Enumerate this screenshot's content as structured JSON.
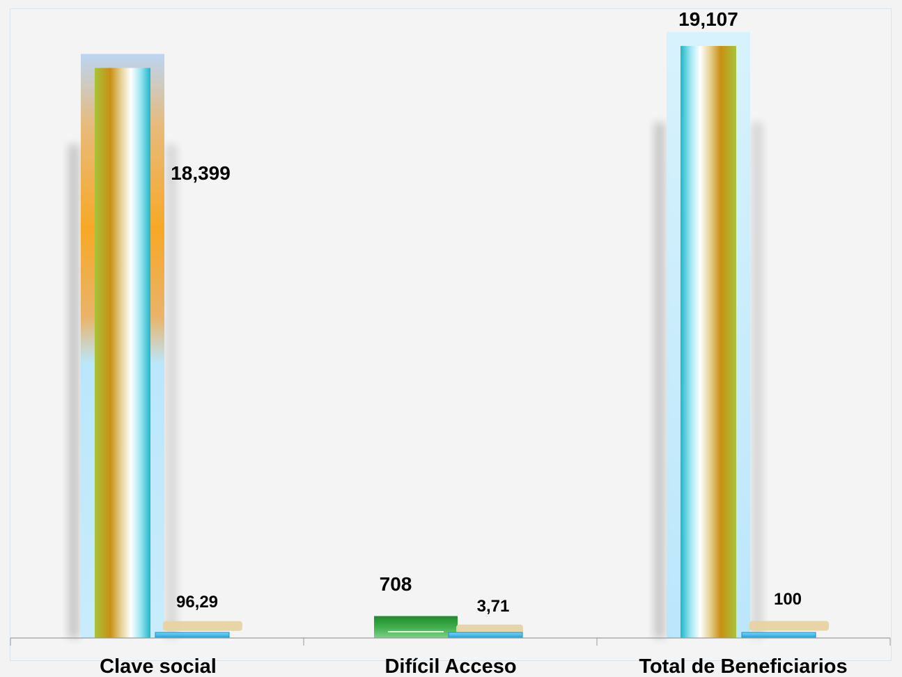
{
  "chart_data": {
    "type": "bar",
    "categories": [
      "Clave social",
      "Difícil Acceso",
      "Total de Beneficiarios"
    ],
    "series": [
      {
        "values": [
          18399,
          708,
          19107
        ],
        "labels": [
          "18,399",
          "708",
          "19,107"
        ]
      },
      {
        "values": [
          96.29,
          3.71,
          100
        ],
        "labels": [
          "96,29",
          "3,71",
          "100"
        ]
      }
    ],
    "xlabel": "",
    "ylabel": "",
    "ylim": [
      0,
      19107
    ],
    "grid": false,
    "legend": "none",
    "colors": {
      "background": "#f4f4f4",
      "axis": "#9a9a9a",
      "blue_glow": "#b8e6fb",
      "orange": "#f7a41c",
      "olive": "#a8b32a",
      "teal": "#1fb6c9",
      "gold": "#c98f14",
      "green": "#2e9a3c",
      "tan": "#e6d3a3",
      "cyan": "#29b3e8"
    }
  }
}
